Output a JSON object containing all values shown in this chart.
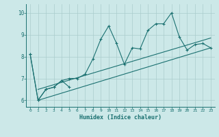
{
  "title": "",
  "xlabel": "Humidex (Indice chaleur)",
  "xlim": [
    -0.5,
    23.5
  ],
  "ylim": [
    5.7,
    10.4
  ],
  "xticks": [
    0,
    1,
    2,
    3,
    4,
    5,
    6,
    7,
    8,
    9,
    10,
    11,
    12,
    13,
    14,
    15,
    16,
    17,
    18,
    19,
    20,
    21,
    22,
    23
  ],
  "yticks": [
    6,
    7,
    8,
    9,
    10
  ],
  "bg_color": "#cce8e8",
  "grid_color": "#aacccc",
  "line_color": "#1a7070",
  "line1_x": [
    0,
    1,
    2,
    3,
    4,
    5
  ],
  "line1_y": [
    8.1,
    6.0,
    6.5,
    6.6,
    6.9,
    6.6
  ],
  "line2_x": [
    0,
    1,
    2,
    3,
    4,
    5,
    6,
    7,
    8,
    9,
    10,
    11,
    12,
    13,
    14,
    15,
    16,
    17,
    18,
    19,
    20,
    21,
    22,
    23
  ],
  "line2_y": [
    8.1,
    6.0,
    6.5,
    6.6,
    6.9,
    7.0,
    7.0,
    7.2,
    7.9,
    8.8,
    9.4,
    8.6,
    7.65,
    8.4,
    8.35,
    9.2,
    9.5,
    9.5,
    10.0,
    8.9,
    8.3,
    8.55,
    8.6,
    8.4
  ],
  "line3_x": [
    1,
    2,
    3,
    4,
    5,
    23
  ],
  "line3_y": [
    6.0,
    6.5,
    6.6,
    6.9,
    6.9,
    8.4
  ],
  "line4_x": [
    1,
    2,
    3,
    4,
    5,
    23
  ],
  "line4_y": [
    6.0,
    6.5,
    6.6,
    6.9,
    7.1,
    8.4
  ]
}
